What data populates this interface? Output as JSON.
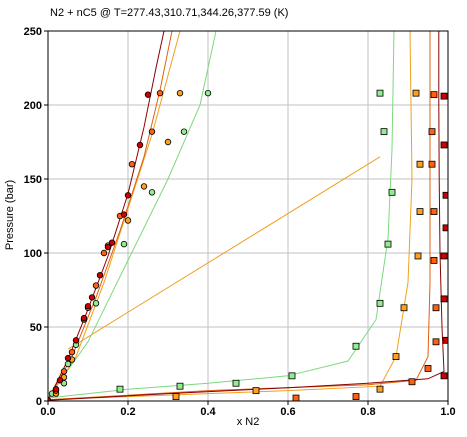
{
  "chart_data": {
    "type": "scatter",
    "title": "N2 + nC5 @ T=277.43,310.71,344.26,377.59 (K)",
    "xlabel": "x N2",
    "ylabel": "Pressure (bar)",
    "xlim": [
      0.0,
      1.0
    ],
    "ylim": [
      0,
      250
    ],
    "xticks": [
      "0.0",
      "0.2",
      "0.4",
      "0.6",
      "0.8",
      "1.0"
    ],
    "yticks": [
      "0",
      "50",
      "100",
      "150",
      "200",
      "250"
    ],
    "grid": true,
    "series": [
      {
        "color": "#8b0000",
        "fill": "#cc0000",
        "liquid_points": [
          [
            0.0,
            0.5
          ],
          [
            0.02,
            8
          ],
          [
            0.03,
            14
          ],
          [
            0.05,
            29
          ],
          [
            0.07,
            41
          ],
          [
            0.09,
            56
          ],
          [
            0.1,
            64
          ],
          [
            0.11,
            70
          ],
          [
            0.13,
            85
          ],
          [
            0.15,
            104
          ],
          [
            0.16,
            107
          ],
          [
            0.19,
            126
          ],
          [
            0.2,
            139
          ],
          [
            0.23,
            173
          ],
          [
            0.25,
            207
          ]
        ],
        "vapor_points": [
          [
            0.99,
            17
          ],
          [
            0.995,
            41
          ],
          [
            0.99,
            69
          ],
          [
            0.99,
            98
          ],
          [
            0.995,
            117
          ],
          [
            0.995,
            139
          ],
          [
            0.99,
            173
          ],
          [
            0.99,
            206
          ]
        ],
        "bubble_curve": [
          [
            0.0,
            0.5
          ],
          [
            0.05,
            28
          ],
          [
            0.1,
            62
          ],
          [
            0.15,
            98
          ],
          [
            0.2,
            140
          ],
          [
            0.24,
            185
          ],
          [
            0.27,
            225
          ],
          [
            0.29,
            250
          ]
        ],
        "dew_curve": [
          [
            0.0,
            0.5
          ],
          [
            0.3,
            5
          ],
          [
            0.6,
            9
          ],
          [
            0.8,
            12
          ],
          [
            0.95,
            15
          ],
          [
            0.99,
            20
          ],
          [
            0.985,
            50
          ],
          [
            0.98,
            100
          ],
          [
            0.978,
            150
          ],
          [
            0.977,
            200
          ],
          [
            0.977,
            250
          ]
        ]
      },
      {
        "color": "#e06010",
        "fill": "#ff6010",
        "liquid_points": [
          [
            0.02,
            7
          ],
          [
            0.04,
            20
          ],
          [
            0.06,
            33
          ],
          [
            0.09,
            55
          ],
          [
            0.12,
            78
          ],
          [
            0.14,
            100
          ],
          [
            0.18,
            125
          ],
          [
            0.21,
            160
          ],
          [
            0.26,
            182
          ],
          [
            0.28,
            208
          ]
        ],
        "vapor_points": [
          [
            0.62,
            2
          ],
          [
            0.77,
            3
          ],
          [
            0.91,
            13
          ],
          [
            0.95,
            22
          ],
          [
            0.97,
            40
          ],
          [
            0.97,
            63
          ],
          [
            0.965,
            95
          ],
          [
            0.965,
            128
          ],
          [
            0.96,
            160
          ],
          [
            0.96,
            182
          ],
          [
            0.965,
            207
          ]
        ],
        "bubble_curve": [
          [
            0.0,
            0.8
          ],
          [
            0.06,
            30
          ],
          [
            0.12,
            70
          ],
          [
            0.18,
            115
          ],
          [
            0.24,
            165
          ],
          [
            0.28,
            210
          ],
          [
            0.31,
            250
          ]
        ],
        "dew_curve": [
          [
            0.0,
            0.8
          ],
          [
            0.4,
            7
          ],
          [
            0.8,
            11
          ],
          [
            0.92,
            14
          ],
          [
            0.95,
            30
          ],
          [
            0.955,
            80
          ],
          [
            0.955,
            150
          ],
          [
            0.955,
            250
          ]
        ]
      },
      {
        "color": "#f0a020",
        "fill": "#ffa020",
        "liquid_points": [
          [
            0.02,
            5
          ],
          [
            0.04,
            16
          ],
          [
            0.06,
            28
          ],
          [
            0.1,
            63
          ],
          [
            0.15,
            105
          ],
          [
            0.2,
            122
          ],
          [
            0.24,
            145
          ],
          [
            0.3,
            175
          ],
          [
            0.33,
            208
          ]
        ],
        "vapor_points": [
          [
            0.32,
            3
          ],
          [
            0.52,
            7
          ],
          [
            0.83,
            8
          ],
          [
            0.87,
            30
          ],
          [
            0.89,
            63
          ],
          [
            0.925,
            98
          ],
          [
            0.93,
            128
          ],
          [
            0.93,
            160
          ],
          [
            0.92,
            208
          ]
        ],
        "bubble_curve": [
          [
            0.0,
            1
          ],
          [
            0.07,
            30
          ],
          [
            0.14,
            80
          ],
          [
            0.2,
            130
          ],
          [
            0.26,
            180
          ],
          [
            0.31,
            230
          ],
          [
            0.33,
            250
          ]
        ],
        "dew_curve": [
          [
            0.0,
            1
          ],
          [
            0.3,
            4
          ],
          [
            0.6,
            7
          ],
          [
            0.83,
            10
          ],
          [
            0.87,
            30
          ],
          [
            0.9,
            80
          ],
          [
            0.91,
            150
          ],
          [
            0.905,
            250
          ]
        ]
      },
      {
        "color": "#7ed87e",
        "fill": "#90ee90",
        "liquid_points": [
          [
            0.01,
            5
          ],
          [
            0.04,
            12
          ],
          [
            0.05,
            25
          ],
          [
            0.07,
            38
          ],
          [
            0.12,
            66
          ],
          [
            0.19,
            106
          ],
          [
            0.26,
            141
          ],
          [
            0.34,
            182
          ],
          [
            0.4,
            208
          ]
        ],
        "vapor_points": [
          [
            0.18,
            8
          ],
          [
            0.33,
            10
          ],
          [
            0.47,
            12
          ],
          [
            0.61,
            17
          ],
          [
            0.77,
            37
          ],
          [
            0.83,
            66
          ],
          [
            0.85,
            106
          ],
          [
            0.86,
            141
          ],
          [
            0.84,
            182
          ],
          [
            0.83,
            208
          ]
        ],
        "bubble_curve": [
          [
            0.0,
            2
          ],
          [
            0.1,
            40
          ],
          [
            0.2,
            95
          ],
          [
            0.3,
            150
          ],
          [
            0.38,
            200
          ],
          [
            0.42,
            250
          ]
        ],
        "dew_curve": [
          [
            0.0,
            2
          ],
          [
            0.2,
            8
          ],
          [
            0.4,
            12
          ],
          [
            0.6,
            17
          ],
          [
            0.75,
            27
          ],
          [
            0.82,
            55
          ],
          [
            0.85,
            110
          ],
          [
            0.86,
            170
          ],
          [
            0.865,
            250
          ]
        ]
      }
    ],
    "tie_line": {
      "color": "#f0a020",
      "points": [
        [
          0.05,
          35
        ],
        [
          0.83,
          165
        ]
      ]
    }
  }
}
